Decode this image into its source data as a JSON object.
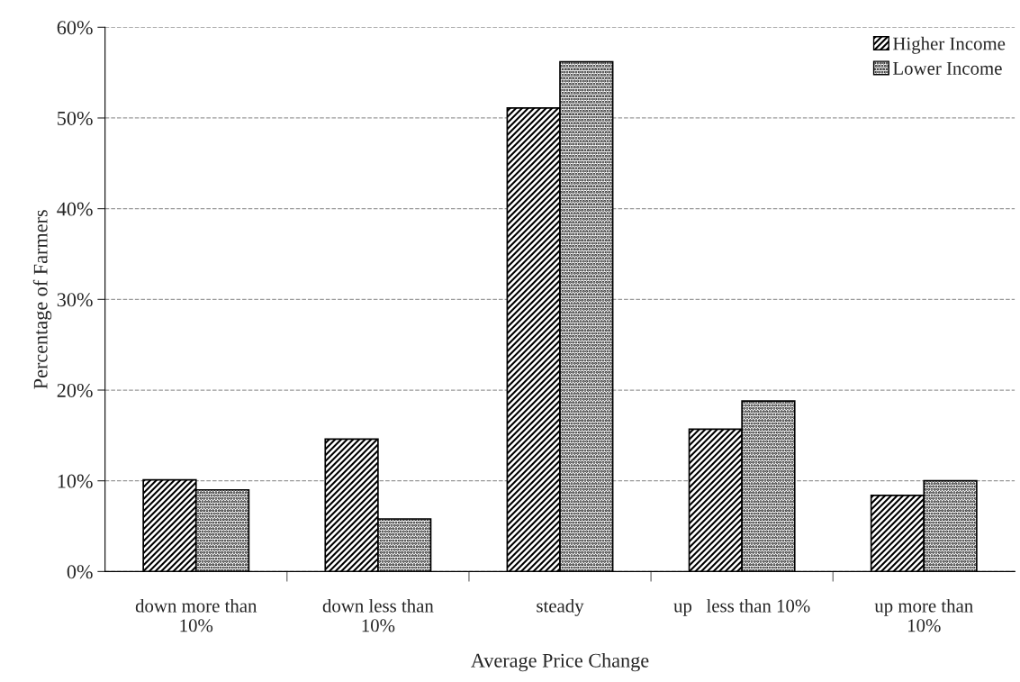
{
  "chart_data": {
    "type": "bar",
    "xlabel": "Average Price Change",
    "ylabel": "Percentage of Farmers",
    "categories": [
      "down more than\n10%",
      "down less than\n10%",
      "steady",
      "up   less than 10%",
      "up more than\n10%"
    ],
    "series": [
      {
        "name": "Higher Income",
        "color": "#000000",
        "values": [
          10.1,
          14.6,
          51.1,
          15.7,
          8.4
        ]
      },
      {
        "name": "Lower Income",
        "color": "#000000",
        "values": [
          9.0,
          5.8,
          56.2,
          18.8,
          10.0
        ]
      }
    ],
    "ylim": [
      0,
      60
    ],
    "yticks": [
      {
        "value": 0,
        "label": "0%"
      },
      {
        "value": 10,
        "label": "10%"
      },
      {
        "value": 20,
        "label": "20%"
      },
      {
        "value": 30,
        "label": "30%"
      },
      {
        "value": 40,
        "label": "40%"
      },
      {
        "value": 50,
        "label": "50%"
      },
      {
        "value": 60,
        "label": "60%"
      }
    ],
    "grid": "y",
    "legend": "top right"
  }
}
